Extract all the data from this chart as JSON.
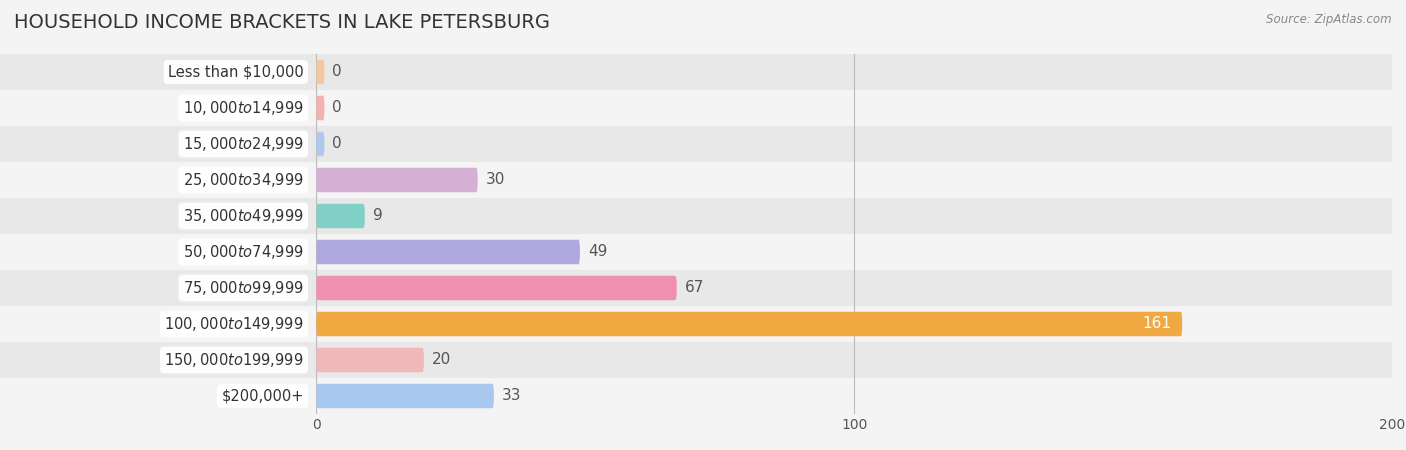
{
  "title": "HOUSEHOLD INCOME BRACKETS IN LAKE PETERSBURG",
  "source": "Source: ZipAtlas.com",
  "categories": [
    "Less than $10,000",
    "$10,000 to $14,999",
    "$15,000 to $24,999",
    "$25,000 to $34,999",
    "$35,000 to $49,999",
    "$50,000 to $74,999",
    "$75,000 to $99,999",
    "$100,000 to $149,999",
    "$150,000 to $199,999",
    "$200,000+"
  ],
  "values": [
    0,
    0,
    0,
    30,
    9,
    49,
    67,
    161,
    20,
    33
  ],
  "bar_colors": [
    "#f5c9a0",
    "#f5b0b0",
    "#b0c8f0",
    "#d4b0d4",
    "#80d0c8",
    "#b0a8e0",
    "#f090b0",
    "#f0a840",
    "#f0b8b8",
    "#a8c8f0"
  ],
  "value_label_inside": [
    false,
    false,
    false,
    false,
    false,
    false,
    false,
    true,
    false,
    false
  ],
  "background_color": "#f4f4f4",
  "row_bg_light": "#f4f4f4",
  "row_bg_dark": "#e8e8e8",
  "xlim": [
    0,
    200
  ],
  "xticks": [
    0,
    100,
    200
  ],
  "title_fontsize": 14,
  "bar_height": 0.68,
  "label_fontsize": 10.5,
  "value_fontsize": 11
}
